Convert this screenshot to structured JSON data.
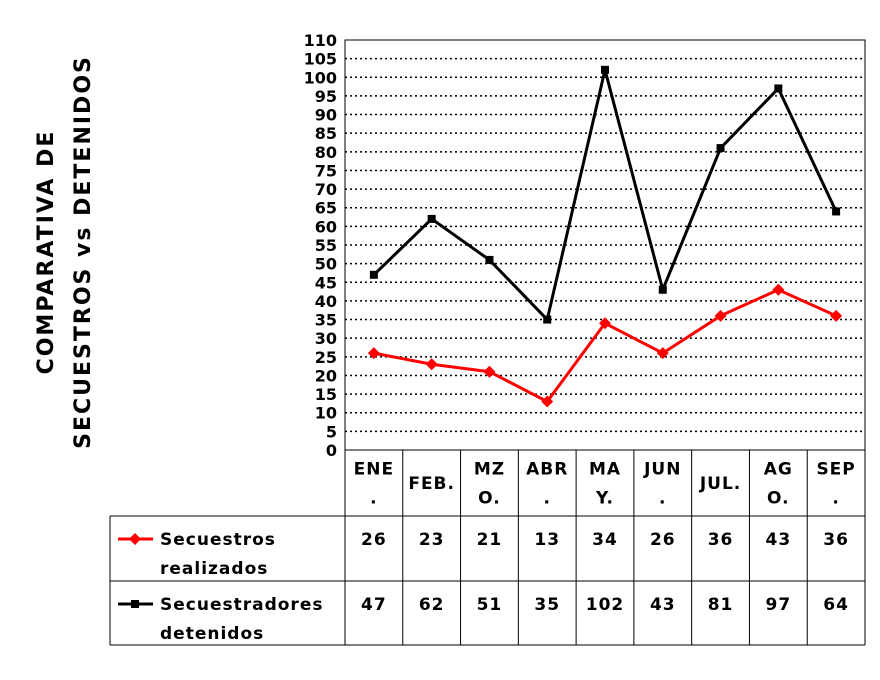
{
  "chart_data": {
    "type": "line",
    "title_lines": [
      "COMPARATIVA DE",
      "SECUESTROS vs DETENIDOS"
    ],
    "categories": [
      [
        "ENE",
        "."
      ],
      [
        "FEB."
      ],
      [
        "MZ",
        "O."
      ],
      [
        "ABR",
        "."
      ],
      [
        "MA",
        "Y."
      ],
      [
        "JUN",
        "."
      ],
      [
        "JUL."
      ],
      [
        "AG",
        "O."
      ],
      [
        "SEP",
        "."
      ]
    ],
    "ylim": [
      0,
      110
    ],
    "ytick_step": 5,
    "grid": true,
    "series": [
      {
        "name_lines": [
          "Secuestros",
          "realizados"
        ],
        "values": [
          26,
          23,
          21,
          13,
          34,
          26,
          36,
          43,
          36
        ],
        "color": "#ff0000",
        "marker": "diamond"
      },
      {
        "name_lines": [
          "Secuestradores",
          "detenidos"
        ],
        "values": [
          47,
          62,
          51,
          35,
          102,
          43,
          81,
          97,
          64
        ],
        "color": "#000000",
        "marker": "square"
      }
    ]
  }
}
